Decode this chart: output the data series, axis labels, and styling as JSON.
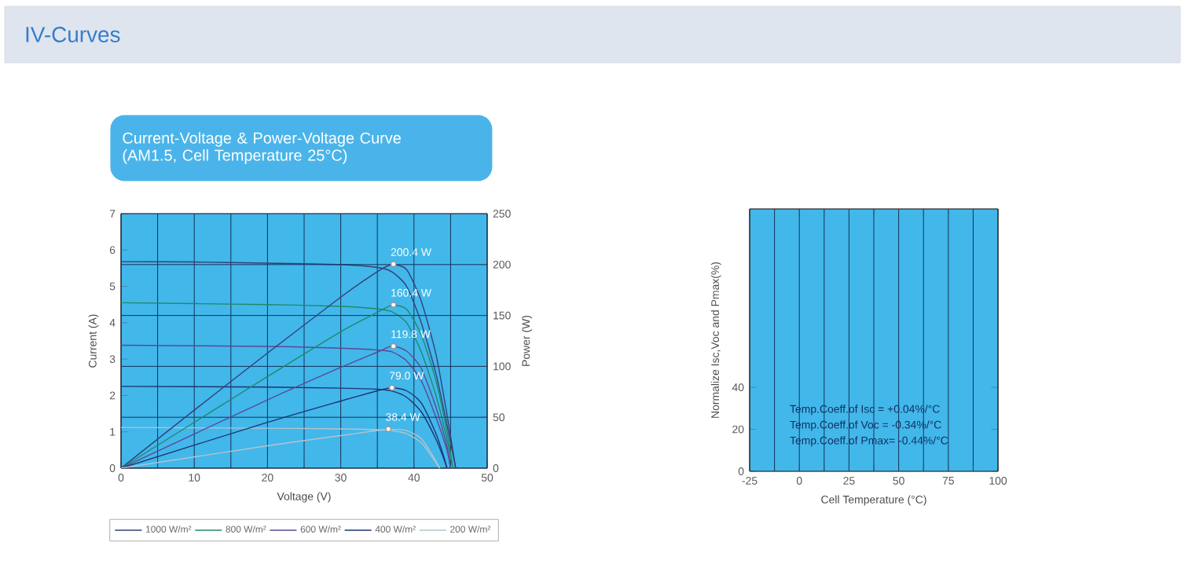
{
  "chart_data": [
    {
      "type": "line",
      "title": "IV-Curves",
      "subtitle": "Current-Voltage & Power-Voltage Curve (AM1.5, Cell Temperature 25°C)",
      "xlabel": "Voltage (V)",
      "ylabel": "Current (A)",
      "y2label": "Power (W)",
      "xlim": [
        0,
        50
      ],
      "xticks": [
        0,
        {
          "value": 5,
          "label": null
        },
        10,
        {
          "value": 15,
          "label": null
        },
        20,
        {
          "value": 25,
          "label": null
        },
        30,
        {
          "value": 35,
          "label": null
        },
        40,
        {
          "value": 45,
          "label": null
        },
        50
      ],
      "ylim": [
        0,
        7
      ],
      "yticks": [
        0,
        1,
        2,
        3,
        4,
        5,
        6,
        7
      ],
      "y2lim": [
        0,
        250
      ],
      "y2ticks": [
        0,
        50,
        100,
        150,
        200,
        250
      ],
      "grid": true,
      "legend": "bottom",
      "series": [
        {
          "name": "1000 W/m²",
          "color": "#34407a",
          "x": [
            0,
            10,
            20,
            30,
            35,
            37,
            39,
            41,
            43,
            44.5,
            45.7
          ],
          "values": [
            5.68,
            5.67,
            5.64,
            5.6,
            5.52,
            5.4,
            5.0,
            4.0,
            2.6,
            1.2,
            0
          ]
        },
        {
          "name": "800 W/m²",
          "color": "#1f8a6a",
          "x": [
            0,
            20,
            30,
            35,
            37,
            39,
            41,
            43,
            44.5,
            45.3
          ],
          "values": [
            4.55,
            4.5,
            4.45,
            4.38,
            4.3,
            4.0,
            3.2,
            2.0,
            0.8,
            0
          ]
        },
        {
          "name": "600 W/m²",
          "color": "#5a4a96",
          "x": [
            0,
            20,
            30,
            35,
            37,
            39,
            41,
            43,
            44.5,
            45
          ],
          "values": [
            3.38,
            3.35,
            3.3,
            3.25,
            3.2,
            2.95,
            2.4,
            1.4,
            0.5,
            0
          ]
        },
        {
          "name": "400 W/m²",
          "color": "#1c3570",
          "x": [
            0,
            20,
            30,
            35,
            37,
            39,
            41,
            43,
            44,
            44.5
          ],
          "values": [
            2.25,
            2.23,
            2.2,
            2.17,
            2.12,
            1.95,
            1.55,
            0.8,
            0.3,
            0
          ]
        },
        {
          "name": "200 W/m²",
          "color": "#b4c4cc",
          "x": [
            0,
            20,
            30,
            35,
            37,
            39,
            41,
            42.5,
            43.5
          ],
          "values": [
            1.12,
            1.1,
            1.08,
            1.06,
            1.03,
            0.95,
            0.7,
            0.3,
            0
          ]
        },
        {
          "color": "#34407a",
          "axis": "y2",
          "x": [
            0,
            10,
            20,
            30,
            35,
            37,
            39,
            41,
            43,
            44.5,
            45.7
          ],
          "values": [
            0,
            57,
            113,
            168,
            193,
            200,
            195,
            164,
            112,
            53,
            0
          ]
        },
        {
          "color": "#1f8a6a",
          "axis": "y2",
          "x": [
            0,
            20,
            30,
            35,
            37,
            39,
            41,
            43,
            44.5,
            45.3
          ],
          "values": [
            0,
            90,
            134,
            153,
            160,
            156,
            131,
            86,
            36,
            0
          ]
        },
        {
          "color": "#5a4a96",
          "axis": "y2",
          "x": [
            0,
            20,
            30,
            35,
            37,
            39,
            41,
            43,
            44.5,
            45
          ],
          "values": [
            0,
            67,
            99,
            114,
            120,
            115,
            98,
            60,
            22,
            0
          ]
        },
        {
          "color": "#1c3570",
          "axis": "y2",
          "x": [
            0,
            20,
            30,
            35,
            37,
            39,
            41,
            43,
            44,
            44.5
          ],
          "values": [
            0,
            45,
            66,
            76,
            79,
            76,
            64,
            34,
            13,
            0
          ]
        },
        {
          "color": "#b4c4cc",
          "axis": "y2",
          "x": [
            0,
            20,
            30,
            35,
            37,
            39,
            41,
            42.5,
            43.5
          ],
          "values": [
            0,
            22,
            32,
            37,
            38,
            37,
            29,
            13,
            0
          ]
        },
        {
          "type": "scatter",
          "color": "#ffffff",
          "axis": "y2",
          "x": [
            37.2,
            37.2,
            37.2,
            37,
            36.5
          ],
          "values": [
            200.4,
            160.4,
            119.8,
            79.0,
            38.4
          ],
          "value_labels": [
            "200.4 W",
            "160.4 W",
            "119.8 W",
            "79.0 W",
            "38.4 W"
          ]
        }
      ]
    },
    {
      "type": "line",
      "xlabel": "Cell Temperature (°C)",
      "ylabel": "Normalize Isc,Voc and Pmax(%)",
      "xlim": [
        -25,
        100
      ],
      "xticks": [
        -25,
        {
          "value": -12.5,
          "label": null
        },
        0,
        {
          "value": 12.5,
          "label": null
        },
        25,
        {
          "value": 37.5,
          "label": null
        },
        50,
        {
          "value": 62.5,
          "label": null
        },
        75,
        {
          "value": 87.5,
          "label": null
        },
        100
      ],
      "ylim": [
        0,
        125
      ],
      "yticks": [
        0,
        20,
        40
      ],
      "grid": "x",
      "annotations": [
        "Temp.Coeff.of Isc = +0.04%/°C",
        "Temp.Coeff.of Voc = -0.34%/°C",
        "Temp.Coeff.of Pmax= -0.44%/°C"
      ]
    }
  ]
}
